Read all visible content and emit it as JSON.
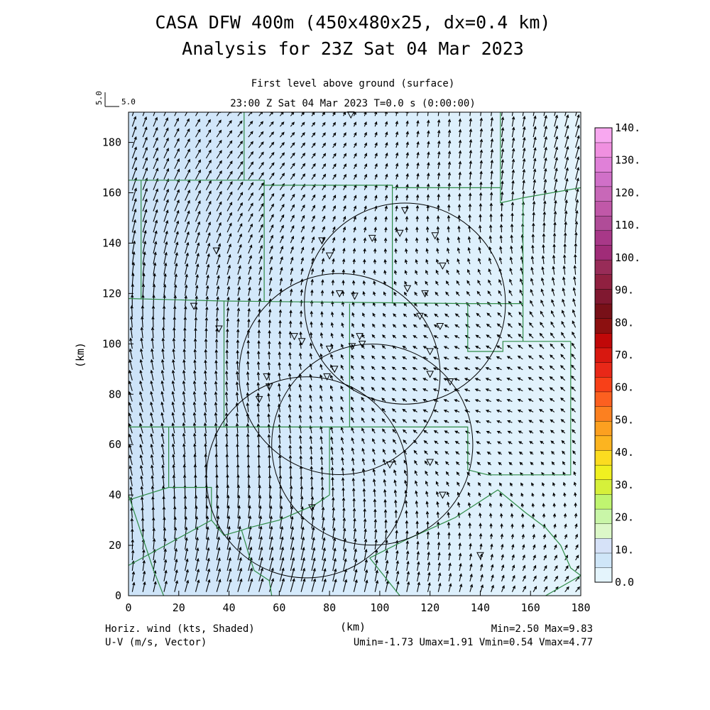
{
  "titles": {
    "line1": "CASA DFW 400m (450x480x25, dx=0.4 km)",
    "line2": "Analysis for 23Z Sat 04 Mar 2023"
  },
  "subtitles": {
    "level": "First level above ground (surface)",
    "time": "23:00 Z Sat 04 Mar 2023   T=0.0 s (0:00:00)"
  },
  "reference_vector": {
    "vertical_label": "5.0",
    "horizontal_label": "5.0"
  },
  "axes": {
    "x": {
      "range": [
        0,
        180
      ],
      "ticks": [
        0,
        20,
        40,
        60,
        80,
        100,
        120,
        140,
        160,
        180
      ],
      "tick_labels": [
        "0",
        "20",
        "40",
        "60",
        "80",
        "100",
        "120",
        "140",
        "160",
        "180"
      ],
      "label": "(km)"
    },
    "y": {
      "range": [
        0,
        192
      ],
      "ticks": [
        0,
        20,
        40,
        60,
        80,
        100,
        120,
        140,
        160,
        180
      ],
      "tick_labels": [
        "0",
        "20",
        "40",
        "60",
        "80",
        "100",
        "120",
        "140",
        "160",
        "180"
      ],
      "label": "(km)"
    }
  },
  "footer": {
    "left1": "Horiz. wind (kts, Shaded)",
    "left2": "U-V (m/s, Vector)",
    "right1": "Min=2.50 Max=9.83",
    "right2": "Umin=-1.73 Umax=1.91 Vmin=0.54 Vmax=4.77"
  },
  "colorbar": {
    "labels": [
      "0.0",
      "10.",
      "20.",
      "30.",
      "40.",
      "50.",
      "60.",
      "70.",
      "80.",
      "90.",
      "100.",
      "110.",
      "120.",
      "130.",
      "140."
    ],
    "colors": [
      "#e4f4fc",
      "#cfe6f8",
      "#d6e2f8",
      "#dcf8c8",
      "#c9f6a8",
      "#c0f570",
      "#d6f03a",
      "#f0f020",
      "#fcdc20",
      "#fcb420",
      "#fca020",
      "#fc8020",
      "#fc6020",
      "#f84018",
      "#e82818",
      "#d81810",
      "#c00808",
      "#8c1010",
      "#781018",
      "#801830",
      "#902040",
      "#982c58",
      "#a02c78",
      "#a83888",
      "#b04c98",
      "#c058a8",
      "#c868b8",
      "#d070c8",
      "#e080d8",
      "#f090e0",
      "#f8a8f0"
    ]
  },
  "map": {
    "field_color": "#d8ecfc",
    "field_light": "#e4f4fc",
    "field_dark": "#cde3f8",
    "boundary_color": "#2e8b46",
    "radar_circle_color": "#000000",
    "radars": [
      {
        "x": 71,
        "y": 47,
        "r": 40
      },
      {
        "x": 84,
        "y": 88,
        "r": 40
      },
      {
        "x": 110,
        "y": 116,
        "r": 40
      },
      {
        "x": 97,
        "y": 60,
        "r": 40
      }
    ],
    "stations": [
      [
        88.5,
        191
      ],
      [
        110,
        153
      ],
      [
        108,
        144
      ],
      [
        122,
        143
      ],
      [
        97,
        142
      ],
      [
        77,
        141
      ],
      [
        35,
        137
      ],
      [
        80,
        135
      ],
      [
        125,
        131
      ],
      [
        111,
        122
      ],
      [
        84,
        120
      ],
      [
        90,
        119
      ],
      [
        118,
        120
      ],
      [
        26,
        115
      ],
      [
        116,
        111
      ],
      [
        124,
        107
      ],
      [
        36,
        106
      ],
      [
        66,
        103
      ],
      [
        69,
        101
      ],
      [
        92,
        103
      ],
      [
        93,
        100
      ],
      [
        89,
        99
      ],
      [
        80,
        98
      ],
      [
        120,
        97
      ],
      [
        120,
        88
      ],
      [
        128,
        85
      ],
      [
        79,
        87
      ],
      [
        82,
        90
      ],
      [
        55,
        87
      ],
      [
        56,
        83
      ],
      [
        52,
        78
      ],
      [
        120,
        53
      ],
      [
        104,
        52
      ],
      [
        125,
        40
      ],
      [
        73,
        35
      ],
      [
        140,
        16
      ]
    ],
    "boundaries": [
      [
        [
          46,
          192
        ],
        [
          46,
          165
        ]
      ],
      [
        [
          0,
          165
        ],
        [
          54,
          165
        ],
        [
          54,
          163
        ],
        [
          105,
          163
        ],
        [
          105,
          162
        ],
        [
          148,
          162
        ],
        [
          148,
          192
        ]
      ],
      [
        [
          5,
          165
        ],
        [
          5,
          118
        ]
      ],
      [
        [
          54,
          165
        ],
        [
          54,
          117
        ]
      ],
      [
        [
          0,
          118
        ],
        [
          38,
          117
        ],
        [
          38,
          67
        ],
        [
          0,
          67
        ]
      ],
      [
        [
          38,
          117
        ],
        [
          135,
          116
        ]
      ],
      [
        [
          105,
          163
        ],
        [
          105,
          116
        ]
      ],
      [
        [
          148,
          162
        ],
        [
          148,
          156
        ],
        [
          157,
          158
        ],
        [
          180,
          162
        ]
      ],
      [
        [
          157,
          158
        ],
        [
          157,
          101
        ]
      ],
      [
        [
          135,
          116
        ],
        [
          157,
          116
        ]
      ],
      [
        [
          135,
          116
        ],
        [
          135,
          97
        ],
        [
          149,
          97
        ],
        [
          149,
          101
        ],
        [
          176,
          101
        ],
        [
          176,
          48
        ],
        [
          143,
          48
        ]
      ],
      [
        [
          88,
          116
        ],
        [
          88,
          67
        ]
      ],
      [
        [
          38,
          67
        ],
        [
          135,
          67
        ],
        [
          135,
          50
        ],
        [
          143,
          48
        ]
      ],
      [
        [
          16,
          67
        ],
        [
          16,
          43
        ],
        [
          33,
          43
        ],
        [
          33,
          30
        ],
        [
          38,
          24
        ],
        [
          45,
          26
        ],
        [
          48,
          27
        ]
      ],
      [
        [
          0,
          38
        ],
        [
          16,
          43
        ]
      ],
      [
        [
          0,
          12
        ],
        [
          33,
          30
        ]
      ],
      [
        [
          48,
          27
        ],
        [
          60,
          30
        ],
        [
          74,
          36
        ],
        [
          80,
          40
        ]
      ],
      [
        [
          80,
          40
        ],
        [
          80,
          67
        ]
      ],
      [
        [
          45,
          26
        ],
        [
          48,
          16
        ],
        [
          50,
          10
        ],
        [
          56,
          6
        ],
        [
          57,
          0
        ]
      ],
      [
        [
          96,
          15
        ],
        [
          110,
          22
        ],
        [
          130,
          31
        ],
        [
          147,
          42
        ],
        [
          158,
          33
        ],
        [
          166,
          27
        ],
        [
          172,
          20
        ],
        [
          176,
          11
        ],
        [
          180,
          8
        ]
      ],
      [
        [
          96,
          15
        ],
        [
          108,
          0
        ]
      ],
      [
        [
          0,
          40
        ],
        [
          10,
          10
        ],
        [
          14,
          0
        ]
      ],
      [
        [
          166,
          0
        ],
        [
          180,
          8
        ]
      ]
    ]
  }
}
